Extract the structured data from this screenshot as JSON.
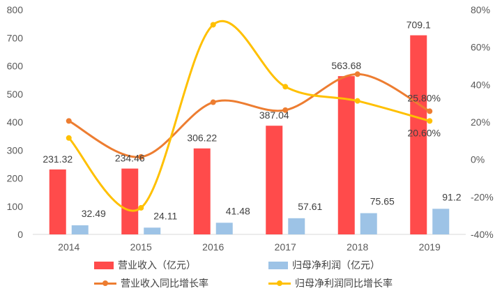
{
  "chart_data": {
    "type": "bar+line",
    "categories": [
      "2014",
      "2015",
      "2016",
      "2017",
      "2018",
      "2019"
    ],
    "series": [
      {
        "name": "营业收入（亿元）",
        "kind": "bar",
        "axis": "left",
        "color": "#ff4b4b",
        "values": [
          231.32,
          234.46,
          306.22,
          387.04,
          563.68,
          709.1
        ],
        "labels": [
          "231.32",
          "234.46",
          "306.22",
          "387.04",
          "563.68",
          "709.1"
        ]
      },
      {
        "name": "归母净利润（亿元）",
        "kind": "bar",
        "axis": "left",
        "color": "#9dc3e6",
        "values": [
          32.49,
          24.11,
          41.48,
          57.61,
          75.65,
          91.2
        ],
        "labels": [
          "32.49",
          "24.11",
          "41.48",
          "57.61",
          "75.65",
          "91.2"
        ]
      },
      {
        "name": "营业收入同比增长率",
        "kind": "line",
        "axis": "right",
        "color": "#ed7d31",
        "values": [
          20.6,
          1.4,
          30.6,
          26.4,
          45.6,
          25.8
        ],
        "labels": [
          "",
          "",
          "",
          "",
          "",
          "25.80%"
        ]
      },
      {
        "name": "归母净利润同比增长率",
        "kind": "line",
        "axis": "right",
        "color": "#ffc000",
        "values": [
          11.5,
          -25.8,
          72.0,
          38.9,
          31.3,
          20.6
        ],
        "labels": [
          "",
          "",
          "",
          "",
          "",
          "20.60%"
        ]
      }
    ],
    "y_left": {
      "ylim": [
        0,
        800
      ],
      "ticks": [
        "0",
        "100",
        "200",
        "300",
        "400",
        "500",
        "600",
        "700",
        "800"
      ]
    },
    "y_right": {
      "ylim": [
        -40,
        80
      ],
      "ticks": [
        "-40%",
        "-20%",
        "0%",
        "20%",
        "40%",
        "60%",
        "80%"
      ]
    },
    "grid": false,
    "legend_position": "bottom"
  }
}
